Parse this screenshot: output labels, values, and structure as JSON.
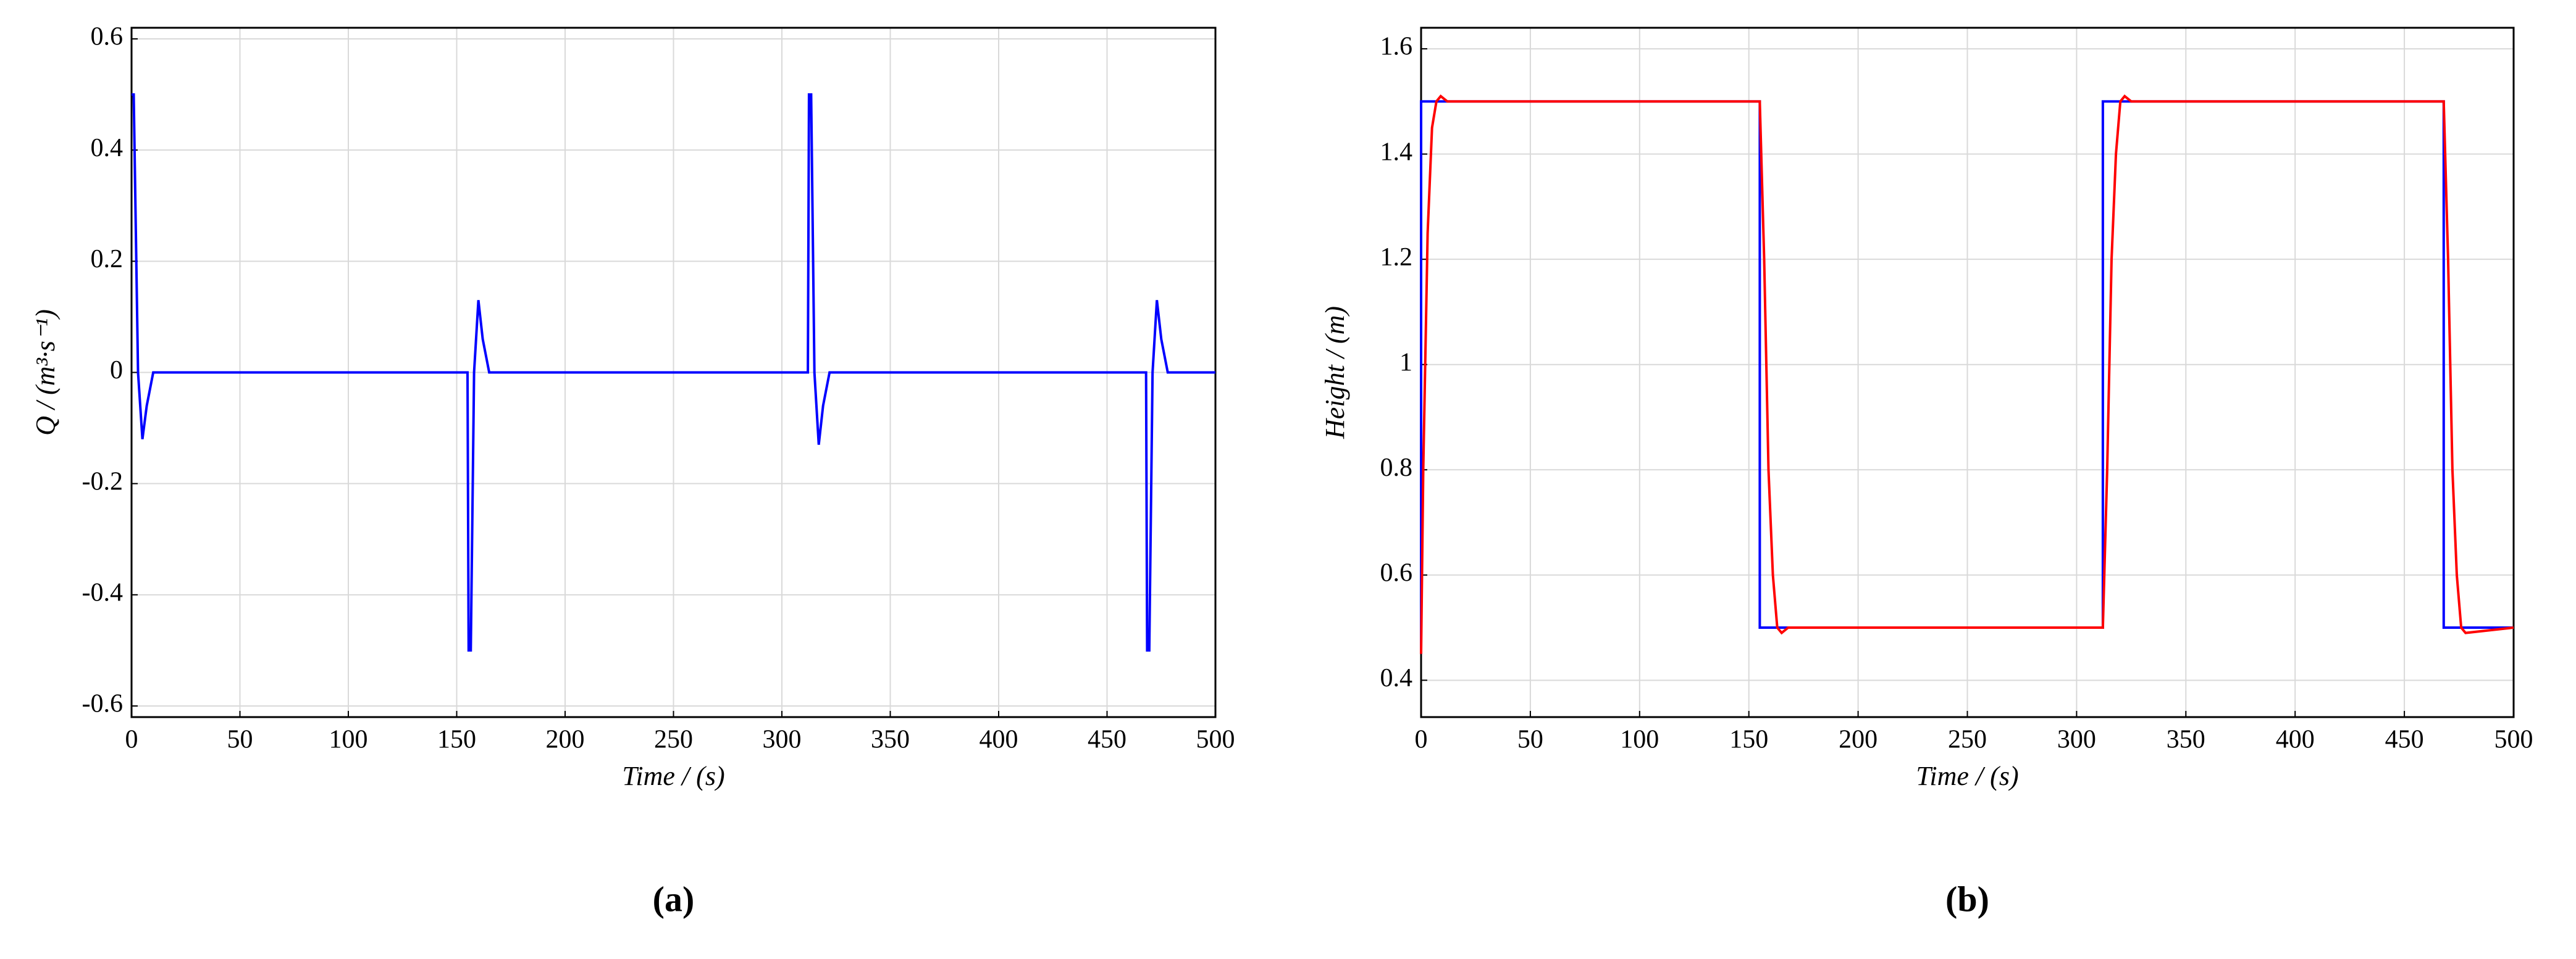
{
  "chart_data": [
    {
      "type": "line",
      "caption": "(a)",
      "xlabel": "Time / (s)",
      "ylabel": "Q / (m³·s⁻¹)",
      "xlim": [
        0,
        500
      ],
      "xticks": [
        0,
        50,
        100,
        150,
        200,
        250,
        300,
        350,
        400,
        450,
        500
      ],
      "ylim": [
        -0.62,
        0.62
      ],
      "yticks": [
        -0.6,
        -0.4,
        -0.2,
        0,
        0.2,
        0.4,
        0.6
      ],
      "grid": true,
      "series": [
        {
          "color": "#0000ff",
          "x": [
            0,
            1,
            3,
            5,
            7,
            10,
            155,
            155.5,
            156.5,
            158,
            160,
            162,
            165,
            312,
            312.5,
            313.5,
            315,
            317,
            319,
            322,
            468,
            468.5,
            469.5,
            471,
            473,
            475,
            478,
            500
          ],
          "values": [
            0.5,
            0.5,
            0,
            -0.12,
            -0.06,
            0,
            0,
            -0.5,
            -0.5,
            0,
            0.13,
            0.06,
            0,
            0,
            0.5,
            0.5,
            0,
            -0.13,
            -0.06,
            0,
            0,
            -0.5,
            -0.5,
            0,
            0.13,
            0.06,
            0,
            0
          ]
        }
      ]
    },
    {
      "type": "line",
      "caption": "(b)",
      "xlabel": "Time / (s)",
      "ylabel": "Height / (m)",
      "xlim": [
        0,
        500
      ],
      "xticks": [
        0,
        50,
        100,
        150,
        200,
        250,
        300,
        350,
        400,
        450,
        500
      ],
      "ylim": [
        0.33,
        1.64
      ],
      "yticks": [
        0.4,
        0.6,
        0.8,
        1,
        1.2,
        1.4,
        1.6
      ],
      "grid": true,
      "series": [
        {
          "color": "#0000ff",
          "x": [
            0,
            0,
            155,
            155,
            312,
            312,
            468,
            468,
            500
          ],
          "values": [
            0.45,
            1.5,
            1.5,
            0.5,
            0.5,
            1.5,
            1.5,
            0.5,
            0.5
          ]
        },
        {
          "color": "#ff0000",
          "x": [
            0,
            1,
            3,
            5,
            7,
            9,
            12,
            155,
            157,
            159,
            161,
            163,
            165,
            168,
            312,
            314,
            316,
            318,
            320,
            322,
            325,
            468,
            470,
            472,
            474,
            476,
            478,
            500
          ],
          "values": [
            0.45,
            0.8,
            1.25,
            1.45,
            1.5,
            1.51,
            1.5,
            1.5,
            1.2,
            0.8,
            0.6,
            0.5,
            0.49,
            0.5,
            0.5,
            0.8,
            1.2,
            1.4,
            1.5,
            1.51,
            1.5,
            1.5,
            1.2,
            0.8,
            0.6,
            0.5,
            0.49,
            0.5
          ]
        }
      ]
    }
  ]
}
